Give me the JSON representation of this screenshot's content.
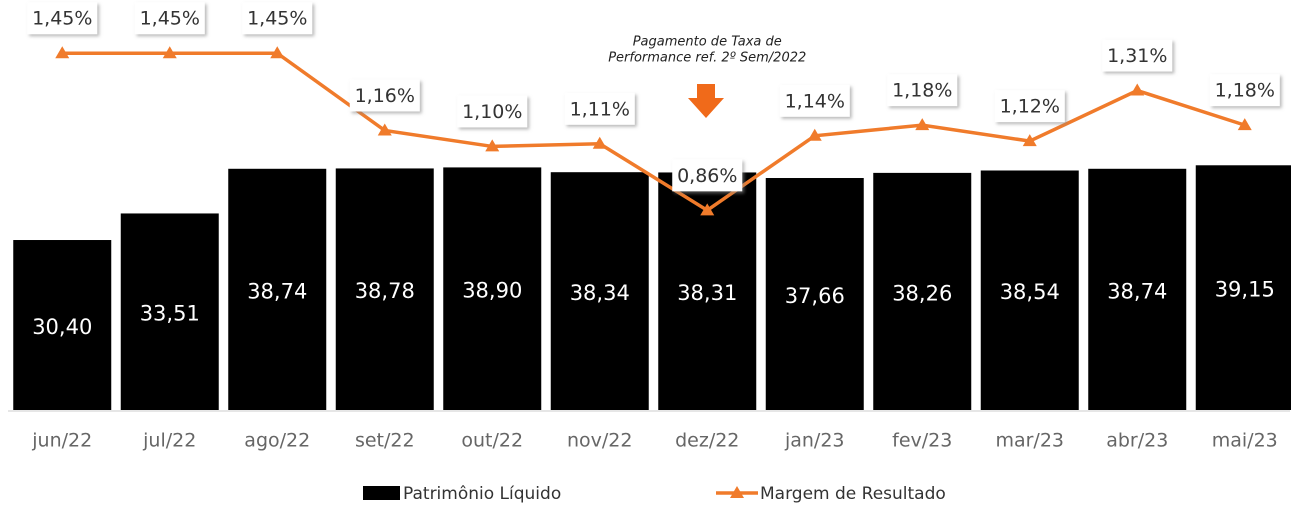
{
  "chart_data": {
    "type": "bar_line",
    "categories": [
      "jun/22",
      "jul/22",
      "ago/22",
      "set/22",
      "out/22",
      "nov/22",
      "dez/22",
      "jan/23",
      "fev/23",
      "mar/23",
      "abr/23",
      "mai/23"
    ],
    "series": [
      {
        "name": "Patrimônio Líquido",
        "type": "bar",
        "color": "#000000",
        "values": [
          30.4,
          33.51,
          38.74,
          38.78,
          38.9,
          38.34,
          38.31,
          37.66,
          38.26,
          38.54,
          38.74,
          39.15
        ],
        "value_labels": [
          "30,40",
          "33,51",
          "38,74",
          "38,78",
          "38,90",
          "38,34",
          "38,31",
          "37,66",
          "38,26",
          "38,54",
          "38,74",
          "39,15"
        ]
      },
      {
        "name": "Margem de Resultado",
        "type": "line",
        "axis": "y2",
        "color": "#f07b2b",
        "values": [
          1.45,
          1.45,
          1.45,
          1.16,
          1.1,
          1.11,
          0.86,
          1.14,
          1.18,
          1.12,
          1.31,
          1.18
        ],
        "value_labels": [
          "1,45%",
          "1,45%",
          "1,45%",
          "1,16%",
          "1,10%",
          "1,11%",
          "0,86%",
          "1,14%",
          "1,18%",
          "1,12%",
          "1,31%",
          "1,18%"
        ]
      }
    ],
    "ylim": [
      10.5,
      58.5
    ],
    "y2lim": [
      0.11,
      1.65
    ],
    "annotation": {
      "text": [
        "Pagamento de Taxa de",
        "Performance ref. 2º Sem/2022"
      ],
      "category": 6
    },
    "legend": "bottom"
  }
}
